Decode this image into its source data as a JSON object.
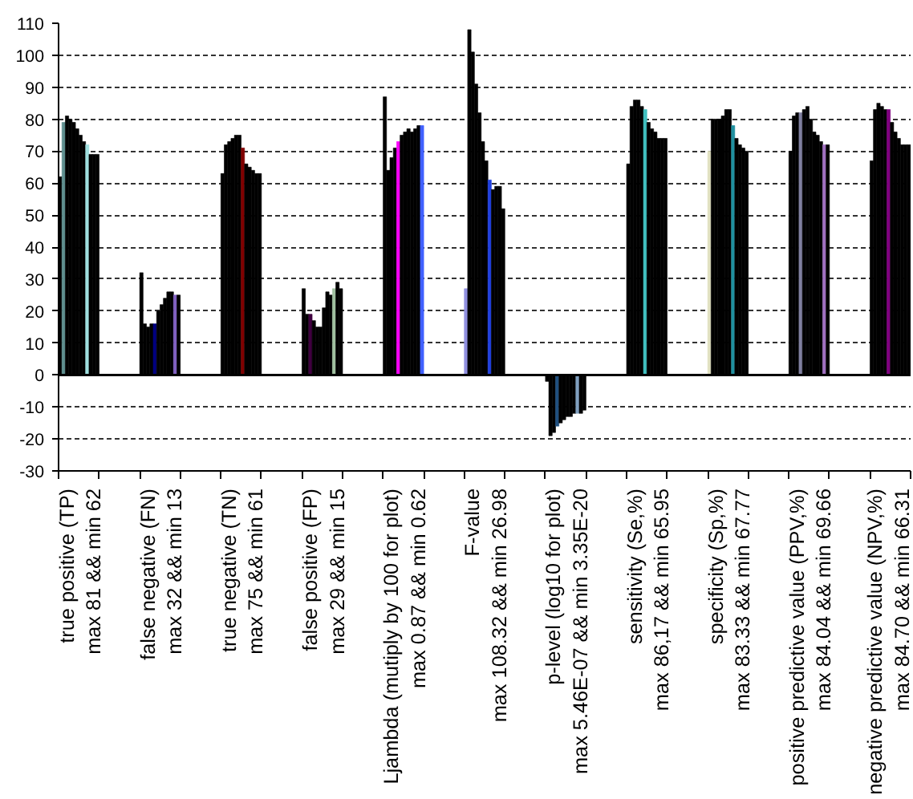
{
  "chart_data": {
    "type": "bar",
    "categories": [
      null,
      null,
      null,
      null,
      null,
      null,
      "true positive (TP)\nmax 81 && min 62",
      null,
      null,
      null,
      null,
      null,
      null,
      null,
      null,
      null,
      null,
      null,
      null,
      null,
      null,
      null,
      null,
      null,
      null,
      null,
      null,
      null,
      null,
      null,
      "false negative (FN)\nmax 32 && min 13",
      null,
      null,
      null,
      null,
      null,
      null,
      null,
      null,
      null,
      null,
      null,
      null,
      null,
      null,
      null,
      null,
      null,
      null,
      null,
      null,
      null,
      null,
      null,
      "true negative (TN)\nmax 75 && min 61",
      null,
      null,
      null,
      null,
      null,
      null,
      null,
      null,
      null,
      null,
      null,
      null,
      null,
      null,
      null,
      null,
      null,
      null,
      null,
      null,
      null,
      null,
      null,
      "false positive (FP)\nmax 29 && min 15",
      null,
      null,
      null,
      null,
      null,
      null,
      null,
      null,
      null,
      null,
      null,
      null,
      null,
      null,
      null,
      null,
      null,
      null,
      null,
      null,
      null,
      null,
      null,
      "Ljambda (mutiply by 100 for plot)\nmax 0.87 && min 0.62",
      null,
      null,
      null,
      null,
      null,
      null,
      null,
      null,
      null,
      null,
      null,
      null,
      null,
      null,
      null,
      null,
      null,
      null,
      null,
      null,
      null,
      null,
      null,
      "F-value\nmax 108.32 && min 26.98",
      null,
      null,
      null,
      null,
      null,
      null,
      null,
      null,
      null,
      null,
      null,
      null,
      null,
      null,
      null,
      null,
      null,
      null,
      null,
      null,
      null,
      null,
      null,
      "p-level (log10 for plot)\nmax 5.46E-07 && min 3.35E-20",
      null,
      null,
      null,
      null,
      null,
      null,
      null,
      null,
      null,
      null,
      null,
      null,
      null,
      null,
      null,
      null,
      null,
      null,
      null,
      null,
      null,
      null,
      null,
      "sensitivity (Se,%)\nmax 86,17 && min 65.95",
      null,
      null,
      null,
      null,
      null,
      null,
      null,
      null,
      null,
      null,
      null,
      null,
      null,
      null,
      null,
      null,
      null,
      null,
      null,
      null,
      null,
      null,
      null,
      "specificity (Sp,%)\nmax 83.33 && min 67.77",
      null,
      null,
      null,
      null,
      null,
      null,
      null,
      null,
      null,
      null,
      null,
      null,
      null,
      null,
      null,
      null,
      null,
      null,
      null,
      null,
      null,
      null,
      null,
      "positive predictive value (PPV,%)\nmax 84.04 && min 69.66",
      null,
      null,
      null,
      null,
      null,
      null,
      null,
      null,
      null,
      null,
      null,
      null,
      null,
      null,
      null,
      null,
      null,
      null,
      null,
      null,
      null,
      null,
      null,
      "negative predictive value (NPV,%)\nmax 84.70 && min 66.31",
      null,
      null,
      null,
      null,
      null
    ],
    "values": [
      62,
      79,
      81,
      80,
      79,
      77,
      75,
      73,
      72,
      69,
      69,
      69,
      null,
      null,
      null,
      null,
      null,
      null,
      null,
      null,
      null,
      null,
      null,
      null,
      32,
      16,
      15,
      16,
      16,
      20,
      22,
      24,
      26,
      26,
      25,
      25,
      null,
      null,
      null,
      null,
      null,
      null,
      null,
      null,
      null,
      null,
      null,
      null,
      63,
      72,
      73,
      74,
      75,
      75,
      71,
      66,
      65,
      64,
      63,
      63,
      null,
      null,
      null,
      null,
      null,
      null,
      null,
      null,
      null,
      null,
      null,
      null,
      27,
      19,
      19,
      17,
      15,
      15,
      21,
      26,
      25,
      27,
      29,
      27,
      null,
      null,
      null,
      null,
      null,
      null,
      null,
      null,
      null,
      null,
      null,
      null,
      87,
      64,
      68,
      71,
      73,
      75,
      76,
      77,
      76,
      77,
      78,
      78,
      null,
      null,
      null,
      null,
      null,
      null,
      null,
      null,
      null,
      null,
      null,
      null,
      27,
      108,
      101,
      91,
      82,
      73,
      67,
      61,
      58,
      59,
      59,
      52,
      null,
      null,
      null,
      null,
      null,
      null,
      null,
      null,
      null,
      null,
      null,
      null,
      -2,
      -19,
      -18,
      -16,
      -15,
      -14,
      -13,
      -13,
      -12,
      -12,
      -12,
      -11,
      null,
      null,
      null,
      null,
      null,
      null,
      null,
      null,
      null,
      null,
      null,
      null,
      66,
      84,
      86,
      86,
      84,
      83,
      79,
      77,
      76,
      74,
      74,
      74,
      null,
      null,
      null,
      null,
      null,
      null,
      null,
      null,
      null,
      null,
      null,
      null,
      70,
      80,
      80,
      80,
      81,
      83,
      83,
      78,
      74,
      72,
      71,
      70,
      null,
      null,
      null,
      null,
      null,
      null,
      null,
      null,
      null,
      null,
      null,
      null,
      70,
      81,
      82,
      82,
      83,
      84,
      80,
      76,
      75,
      73,
      72,
      72,
      null,
      null,
      null,
      null,
      null,
      null,
      null,
      null,
      null,
      null,
      null,
      null,
      67,
      83,
      85,
      84,
      83,
      83,
      79,
      76,
      74,
      72,
      72,
      72
    ],
    "colors": [
      "#000000",
      "#5f8f8f",
      "#000000",
      "#000000",
      "#000000",
      "#000000",
      "#000000",
      "#000000",
      "#a0e0e0",
      "#000000",
      "#000000",
      "#000000",
      "#000000",
      "#000000",
      "#000000",
      "#000000",
      "#000000",
      "#000000",
      "#000000",
      "#000000",
      "#000000",
      "#000000",
      "#000000",
      "#000000",
      "#000000",
      "#000000",
      "#000000",
      "#000000",
      "#000080",
      "#000000",
      "#000000",
      "#000000",
      "#000000",
      "#000000",
      "#8060c0",
      "#000000",
      "#000000",
      "#000000",
      "#000000",
      "#000000",
      "#000000",
      "#000000",
      "#000000",
      "#000000",
      "#000000",
      "#000000",
      "#000000",
      "#000000",
      "#000000",
      "#000000",
      "#000000",
      "#000000",
      "#000000",
      "#000000",
      "#800000",
      "#000000",
      "#000000",
      "#000000",
      "#000000",
      "#000000",
      "#000000",
      "#000000",
      "#000000",
      "#000000",
      "#000000",
      "#000000",
      "#000000",
      "#000000",
      "#000000",
      "#000000",
      "#000000",
      "#000000",
      "#000000",
      "#000000",
      "#400040",
      "#000000",
      "#000000",
      "#000000",
      "#000000",
      "#000000",
      "#000000",
      "#a0c0a0",
      "#000000",
      "#000000",
      "#000000",
      "#000000",
      "#000000",
      "#000000",
      "#000000",
      "#000000",
      "#000000",
      "#000000",
      "#000000",
      "#000000",
      "#000000",
      "#000000",
      "#000000",
      "#000000",
      "#000000",
      "#000000",
      "#ff00ff",
      "#000000",
      "#000000",
      "#000000",
      "#000000",
      "#000000",
      "#000000",
      "#4060ff",
      "#000000",
      "#000000",
      "#000000",
      "#000000",
      "#000000",
      "#000000",
      "#000000",
      "#000000",
      "#000000",
      "#000000",
      "#000000",
      "#000000",
      "#9090e0",
      "#000000",
      "#000000",
      "#000000",
      "#000000",
      "#000000",
      "#000000",
      "#2040e0",
      "#000000",
      "#000000",
      "#000000",
      "#000000",
      "#000000",
      "#000000",
      "#000000",
      "#000000",
      "#000000",
      "#000000",
      "#000000",
      "#000000",
      "#000000",
      "#000000",
      "#000000",
      "#000000",
      "#000000",
      "#000000",
      "#000000",
      "#205080",
      "#000000",
      "#000000",
      "#000000",
      "#000000",
      "#000000",
      "#80a0c0",
      "#000000",
      "#000000",
      "#000000",
      "#000000",
      "#000000",
      "#000000",
      "#000000",
      "#000000",
      "#000000",
      "#000000",
      "#000000",
      "#000000",
      "#000000",
      "#000000",
      "#000000",
      "#000000",
      "#000000",
      "#000000",
      "#000000",
      "#40c0c0",
      "#000000",
      "#000000",
      "#000000",
      "#000000",
      "#000000",
      "#000000",
      "#000000",
      "#000000",
      "#000000",
      "#000000",
      "#000000",
      "#000000",
      "#000000",
      "#000000",
      "#000000",
      "#000000",
      "#000000",
      "#000000",
      "#e0e0c0",
      "#000000",
      "#000000",
      "#000000",
      "#000000",
      "#000000",
      "#000000",
      "#2090a0",
      "#000000",
      "#000000",
      "#000000",
      "#000000",
      "#000000",
      "#000000",
      "#000000",
      "#000000",
      "#000000",
      "#000000",
      "#000000",
      "#000000",
      "#000000",
      "#000000",
      "#000000",
      "#000000",
      "#000000",
      "#000000",
      "#000000",
      "#8080a0",
      "#000000",
      "#000000",
      "#000000",
      "#000000",
      "#000000",
      "#000000",
      "#a070c0",
      "#000000",
      "#000000",
      "#000000",
      "#000000",
      "#000000",
      "#000000",
      "#000000",
      "#000000",
      "#000000",
      "#000000",
      "#000000",
      "#000000",
      "#000000",
      "#000000",
      "#000000",
      "#000000",
      "#000000",
      "#000000",
      "#800080",
      "#000000",
      "#000000",
      "#000000",
      "#000000",
      "#000000",
      "#000000"
    ],
    "ylim": [
      -30,
      110
    ],
    "yticks": [
      -30,
      -20,
      -10,
      0,
      10,
      20,
      30,
      40,
      50,
      60,
      70,
      80,
      90,
      100,
      110
    ],
    "ref_lines": [
      {
        "axis": "y",
        "value": 0,
        "label": null,
        "color": "#000000",
        "line_style": "solid"
      }
    ],
    "grid": "y"
  }
}
